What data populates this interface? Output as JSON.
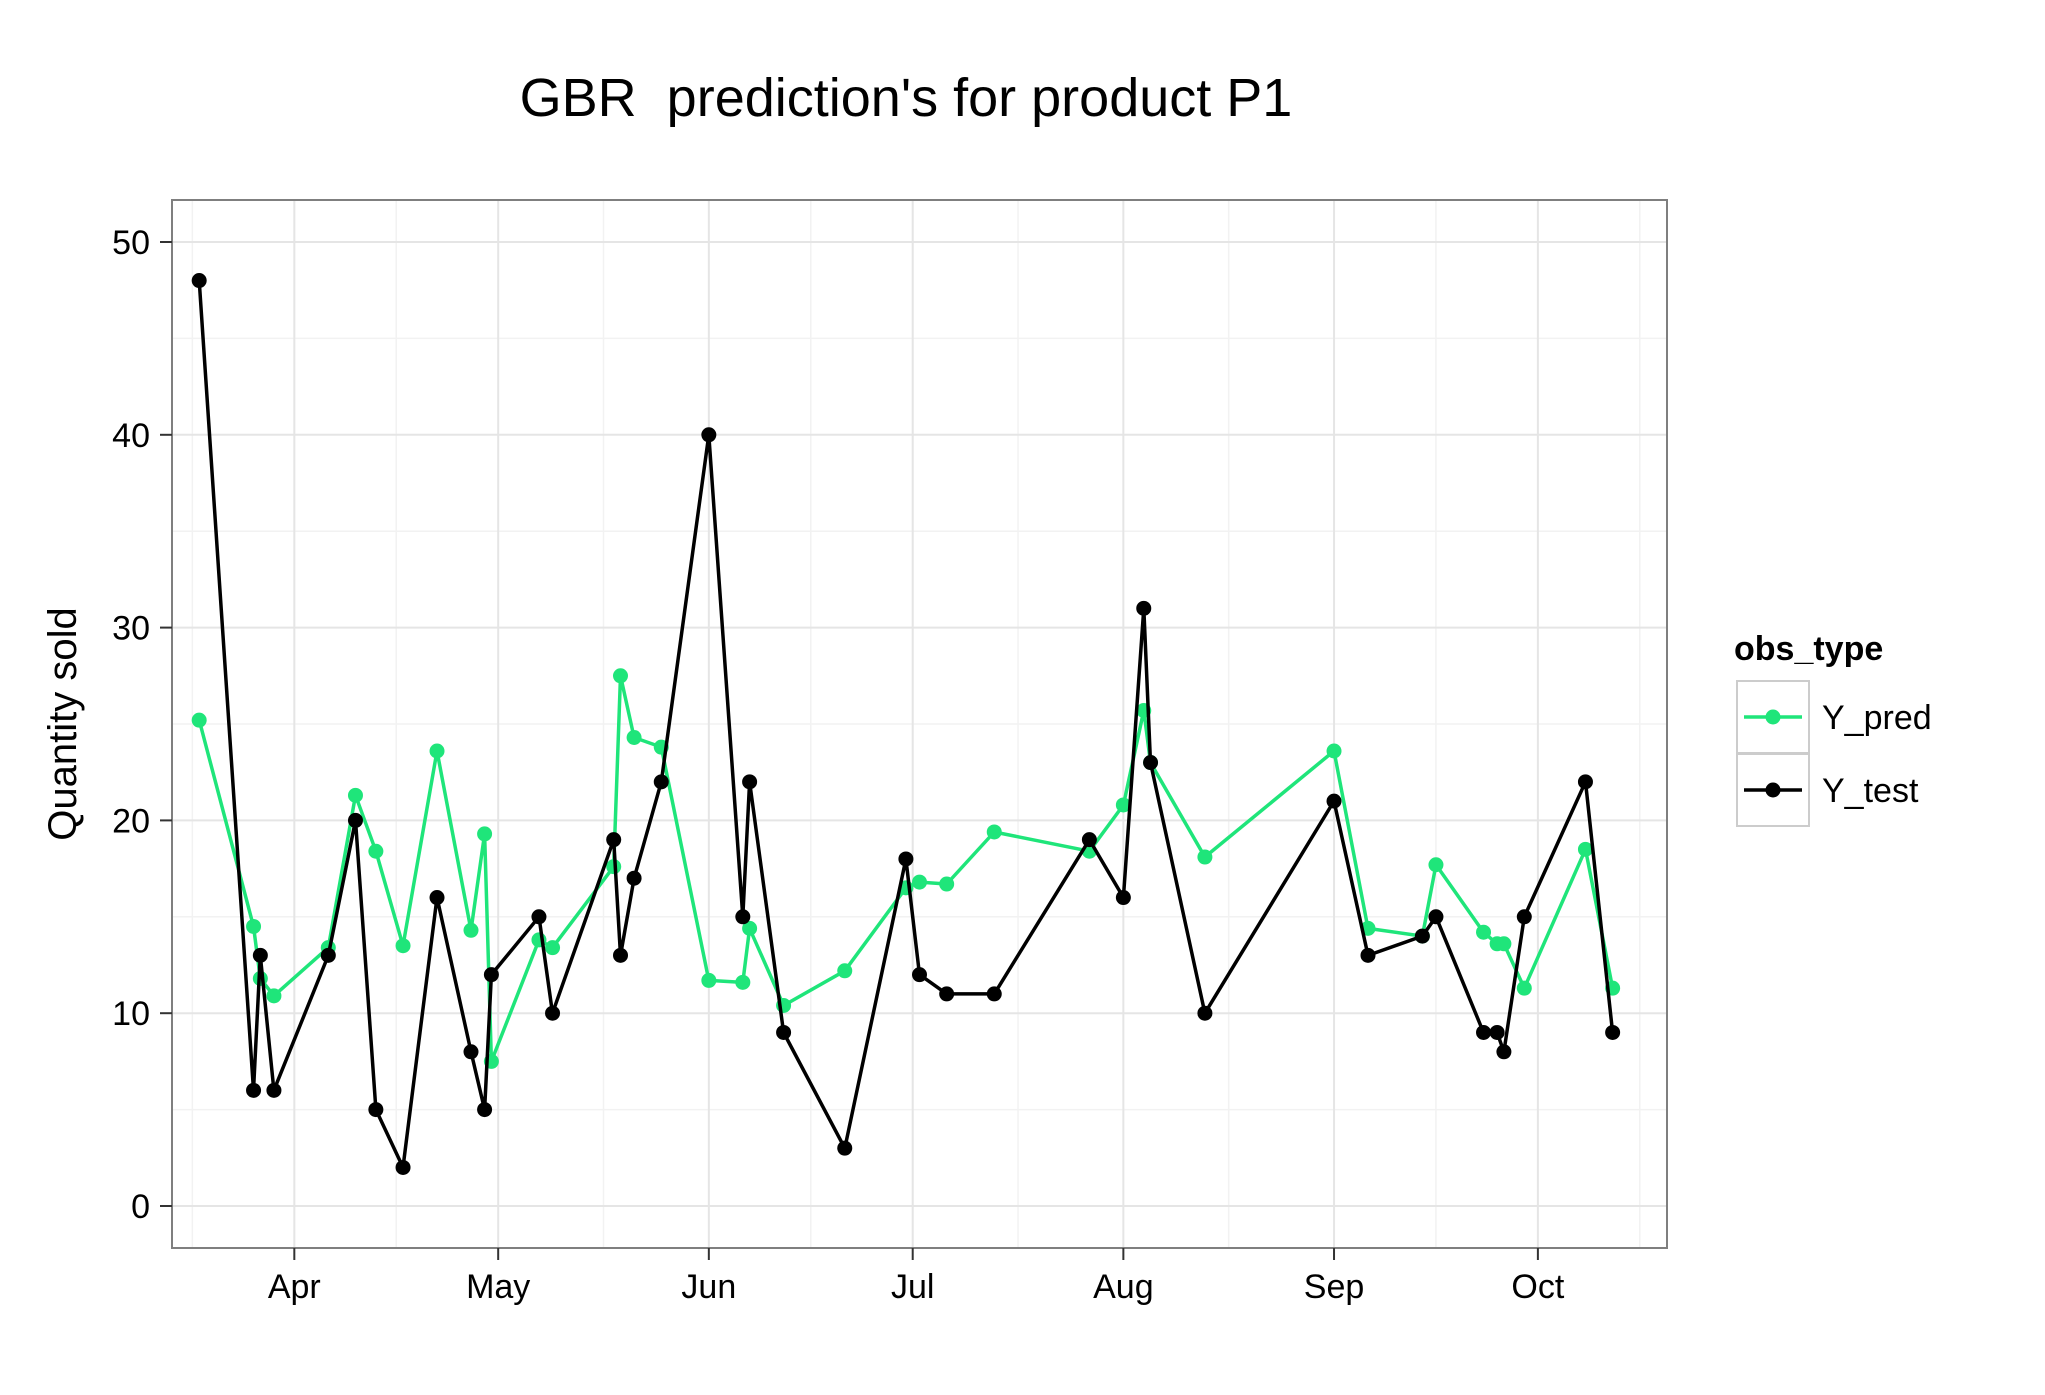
{
  "chart_data": {
    "type": "line",
    "title": "GBR  prediction's for product P1",
    "xlabel": "",
    "ylabel": "Quantity sold",
    "x_type": "date",
    "xlim": [
      "2014-03-14",
      "2014-10-20"
    ],
    "ylim": [
      0,
      50
    ],
    "grid": true,
    "legend": {
      "title": "obs_type",
      "position": "right"
    },
    "x_tick_values": [
      "2014-04-01",
      "2014-05-01",
      "2014-06-01",
      "2014-07-01",
      "2014-08-01",
      "2014-09-01",
      "2014-10-01"
    ],
    "x_tick_labels": [
      "Apr",
      "May",
      "Jun",
      "Jul",
      "Aug",
      "Sep",
      "Oct"
    ],
    "y_ticks": [
      0,
      10,
      20,
      30,
      40,
      50
    ],
    "x": [
      "2014-03-18",
      "2014-03-26",
      "2014-03-27",
      "2014-03-29",
      "2014-04-06",
      "2014-04-10",
      "2014-04-13",
      "2014-04-17",
      "2014-04-22",
      "2014-04-27",
      "2014-04-29",
      "2014-04-30",
      "2014-05-07",
      "2014-05-09",
      "2014-05-18",
      "2014-05-19",
      "2014-05-21",
      "2014-05-25",
      "2014-06-01",
      "2014-06-06",
      "2014-06-07",
      "2014-06-12",
      "2014-06-21",
      "2014-06-30",
      "2014-07-02",
      "2014-07-06",
      "2014-07-13",
      "2014-07-27",
      "2014-08-01",
      "2014-08-04",
      "2014-08-05",
      "2014-08-13",
      "2014-09-01",
      "2014-09-06",
      "2014-09-14",
      "2014-09-16",
      "2014-09-23",
      "2014-09-25",
      "2014-09-26",
      "2014-09-29",
      "2014-10-08",
      "2014-10-12"
    ],
    "series": [
      {
        "name": "Y_pred",
        "color": "#1FE57A",
        "values": [
          25.2,
          14.5,
          11.8,
          10.9,
          13.4,
          21.3,
          18.4,
          13.5,
          23.6,
          14.3,
          19.3,
          7.5,
          13.8,
          13.4,
          17.6,
          27.5,
          24.3,
          23.8,
          11.7,
          11.6,
          14.4,
          10.4,
          12.2,
          16.5,
          16.8,
          16.7,
          19.4,
          18.4,
          20.8,
          25.7,
          23.0,
          18.1,
          23.6,
          14.4,
          14.0,
          17.7,
          14.2,
          13.6,
          13.6,
          11.3,
          18.5,
          11.3
        ]
      },
      {
        "name": "Y_test",
        "color": "#000000",
        "values": [
          48,
          6,
          13,
          6,
          13,
          20,
          5,
          2,
          16,
          8,
          5,
          12,
          15,
          10,
          19,
          13,
          17,
          22,
          40,
          15,
          22,
          9,
          3,
          18,
          12,
          11,
          11,
          19,
          16,
          31,
          23,
          10,
          21,
          13,
          14,
          15,
          9,
          9,
          8,
          15,
          22,
          9
        ]
      }
    ]
  }
}
